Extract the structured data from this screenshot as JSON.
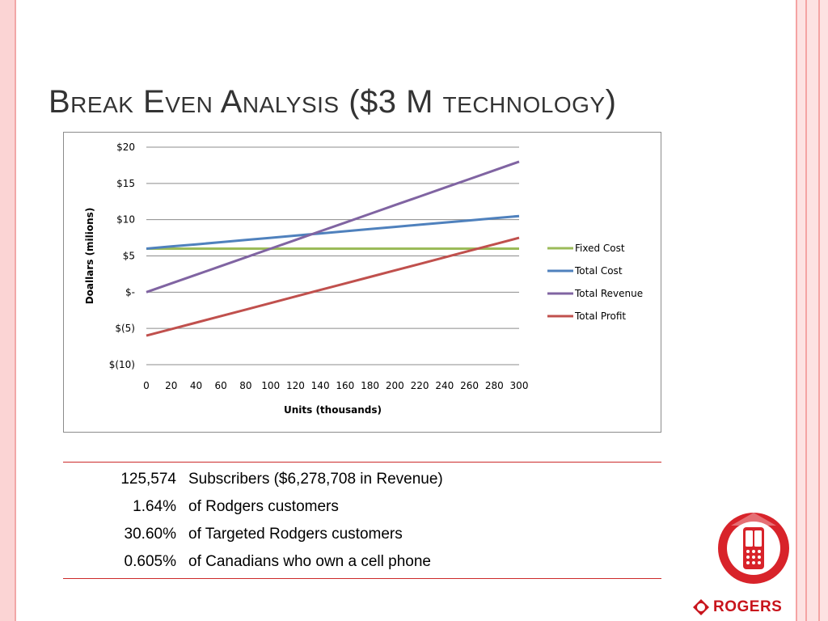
{
  "slide": {
    "title": "Break Even Analysis ($3 M technology)"
  },
  "chart_data": {
    "type": "line",
    "x": [
      0,
      20,
      40,
      60,
      80,
      100,
      120,
      140,
      160,
      180,
      200,
      220,
      240,
      260,
      280,
      300
    ],
    "xlabel": "Units (thousands)",
    "ylabel": "Doallars (milions)",
    "ylim": [
      -10,
      20
    ],
    "y_ticks": [
      20,
      15,
      10,
      5,
      0,
      -5,
      -10
    ],
    "y_tick_labels": [
      "$20",
      "$15",
      "$10",
      "$5",
      "$-",
      "$(5)",
      "$(10)"
    ],
    "x_tick_labels": [
      "0",
      "20",
      "40",
      "60",
      "80",
      "100",
      "120",
      "140",
      "160",
      "180",
      "200",
      "220",
      "240",
      "260",
      "280",
      "300"
    ],
    "grid": true,
    "legend_position": "right",
    "series": [
      {
        "name": "Fixed Cost",
        "color": "#9bbb59",
        "values": [
          6,
          6,
          6,
          6,
          6,
          6,
          6,
          6,
          6,
          6,
          6,
          6,
          6,
          6,
          6,
          6
        ]
      },
      {
        "name": "Total Cost",
        "color": "#4f81bd",
        "values": [
          6,
          6.3,
          6.6,
          6.9,
          7.2,
          7.5,
          7.8,
          8.1,
          8.4,
          8.7,
          9.0,
          9.3,
          9.6,
          9.9,
          10.2,
          10.5
        ]
      },
      {
        "name": "Total Revenue",
        "color": "#8064a2",
        "values": [
          0,
          1.2,
          2.4,
          3.6,
          4.8,
          6.0,
          7.2,
          8.4,
          9.6,
          10.8,
          12.0,
          13.2,
          14.4,
          15.6,
          16.8,
          18.0
        ]
      },
      {
        "name": "Total Profit",
        "color": "#c0504d",
        "values": [
          -6,
          -5.1,
          -4.2,
          -3.3,
          -2.4,
          -1.5,
          -0.6,
          0.3,
          1.2,
          2.1,
          3.0,
          3.9,
          4.8,
          5.7,
          6.6,
          7.5
        ]
      }
    ]
  },
  "stats": [
    {
      "value": "125,574",
      "desc": "Subscribers ($6,278,708 in Revenue)"
    },
    {
      "value": "1.64%",
      "desc": "of Rodgers customers"
    },
    {
      "value": "30.60%",
      "desc": "of Targeted Rodgers customers"
    },
    {
      "value": "0.605%",
      "desc": "of Canadians who own a cell phone"
    }
  ],
  "brand": {
    "name": "ROGERS",
    "color": "#c8141c"
  }
}
